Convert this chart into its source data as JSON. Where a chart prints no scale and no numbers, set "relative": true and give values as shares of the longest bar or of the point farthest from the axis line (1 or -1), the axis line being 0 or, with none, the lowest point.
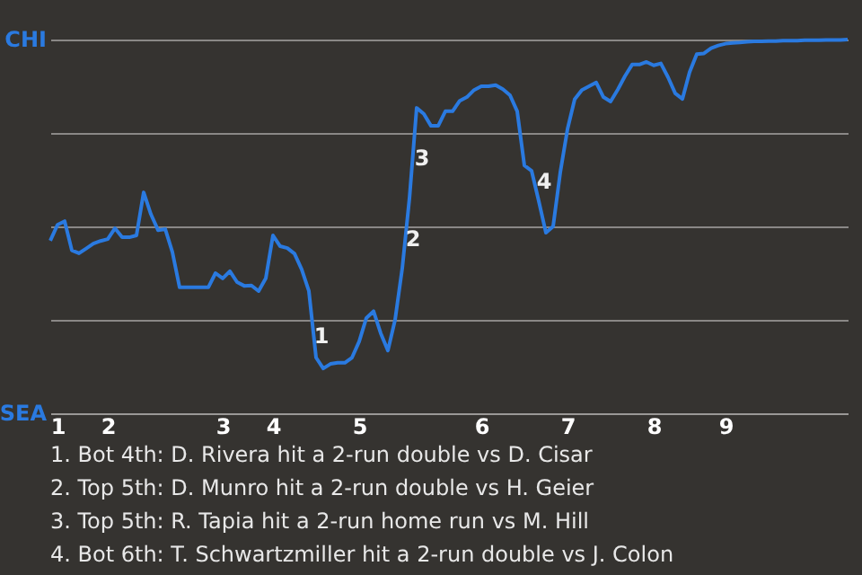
{
  "chart_data": {
    "type": "line",
    "relative": true,
    "categories": [
      null,
      "1",
      null,
      null,
      null,
      null,
      null,
      null,
      "2",
      null,
      null,
      null,
      null,
      null,
      null,
      null,
      null,
      null,
      null,
      null,
      null,
      null,
      null,
      null,
      "3",
      null,
      null,
      null,
      null,
      null,
      null,
      "4",
      null,
      null,
      null,
      null,
      null,
      null,
      null,
      null,
      null,
      null,
      null,
      "5",
      null,
      null,
      null,
      null,
      null,
      null,
      null,
      null,
      null,
      null,
      null,
      null,
      null,
      null,
      null,
      null,
      "6",
      null,
      null,
      null,
      null,
      null,
      null,
      null,
      null,
      null,
      null,
      null,
      "7",
      null,
      null,
      null,
      null,
      null,
      null,
      null,
      null,
      null,
      null,
      null,
      "8",
      null,
      null,
      null,
      null,
      null,
      null,
      null,
      null,
      null,
      "9",
      null,
      null,
      null,
      null,
      null,
      null,
      null,
      null,
      null,
      null,
      null,
      null,
      null,
      null,
      null,
      null,
      null
    ],
    "series": [
      {
        "color": "#2a7ae0",
        "values": [
          0.462,
          0.504,
          0.514,
          0.436,
          0.428,
          0.441,
          0.454,
          0.461,
          0.466,
          0.495,
          0.471,
          0.471,
          0.476,
          0.591,
          0.533,
          0.49,
          0.493,
          0.431,
          0.337,
          0.337,
          0.337,
          0.337,
          0.337,
          0.375,
          0.361,
          0.38,
          0.351,
          0.341,
          0.342,
          0.327,
          0.361,
          0.476,
          0.447,
          0.442,
          0.427,
          0.385,
          0.327,
          0.149,
          0.12,
          0.132,
          0.135,
          0.135,
          0.149,
          0.192,
          0.255,
          0.273,
          0.214,
          0.168,
          0.25,
          0.388,
          0.575,
          0.817,
          0.801,
          0.769,
          0.769,
          0.808,
          0.808,
          0.836,
          0.846,
          0.865,
          0.875,
          0.875,
          0.878,
          0.867,
          0.851,
          0.808,
          0.663,
          0.649,
          0.568,
          0.483,
          0.5,
          0.645,
          0.76,
          0.84,
          0.865,
          0.875,
          0.885,
          0.846,
          0.834,
          0.866,
          0.902,
          0.933,
          0.933,
          0.94,
          0.931,
          0.936,
          0.899,
          0.856,
          0.841,
          0.913,
          0.961,
          0.963,
          0.977,
          0.984,
          0.989,
          0.991,
          0.992,
          0.994,
          0.995,
          0.995,
          0.996,
          0.996,
          0.997,
          0.997,
          0.997,
          0.998,
          0.998,
          0.998,
          0.999,
          0.999,
          0.999,
          1
        ]
      }
    ],
    "grid": "y",
    "annotations": [
      "CHI",
      "SEA",
      "1",
      "2",
      "3",
      "4",
      "1. Bot 4th: D. Rivera hit a 2-run double vs D. Cisar",
      "2. Top 5th: D. Munro hit a 2-run double vs H. Geier",
      "3. Top 5th: R. Tapia hit a 2-run home run vs M. Hill",
      "4. Bot 6th: T. Schwartzmiller hit a 2-run double vs J. Colon"
    ]
  }
}
